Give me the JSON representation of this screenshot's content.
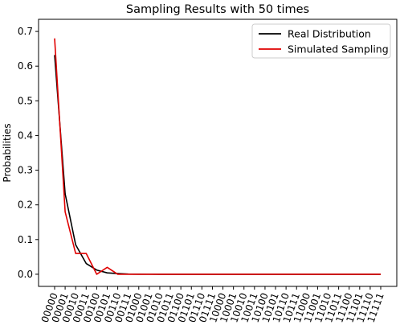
{
  "chart_data": {
    "type": "line",
    "title": "Sampling Results with 50 times",
    "xlabel": "",
    "ylabel": "Probabilities",
    "ylim": [
      -0.035,
      0.735
    ],
    "yticks": [
      0.0,
      0.1,
      0.2,
      0.3,
      0.4,
      0.5,
      0.6,
      0.7
    ],
    "ytick_labels": [
      "0.0",
      "0.1",
      "0.2",
      "0.3",
      "0.4",
      "0.5",
      "0.6",
      "0.7"
    ],
    "x": [
      "00000",
      "00001",
      "00010",
      "00011",
      "00100",
      "00101",
      "00110",
      "00111",
      "01000",
      "01001",
      "01010",
      "01011",
      "01100",
      "01101",
      "01110",
      "01111",
      "10000",
      "10001",
      "10010",
      "10011",
      "10100",
      "10101",
      "10110",
      "10111",
      "11000",
      "11001",
      "11010",
      "11011",
      "11100",
      "11101",
      "11110",
      "11111"
    ],
    "visible_x_tick_labels": [
      "00000",
      "00001",
      "00010",
      "00011",
      "00100",
      "00101",
      "00110",
      "00111",
      "01000",
      "01001",
      "01010",
      "01011",
      "01100",
      "01101",
      "01110",
      "01111",
      "10000",
      "10001",
      "10010",
      "10011",
      "10100",
      "10101",
      "10110",
      "10111",
      "11000",
      "11001",
      "11010",
      "11011",
      "11100",
      "11101",
      "11110",
      "11111"
    ],
    "legend_position": "top-right",
    "grid": false,
    "series": [
      {
        "name": "Real Distribution",
        "color": "#000000",
        "values": [
          0.632,
          0.232,
          0.085,
          0.031,
          0.012,
          0.004,
          0.002,
          0.0005,
          0.0002,
          0.0001,
          5e-05,
          2e-05,
          1e-05,
          0,
          0,
          0,
          0,
          0,
          0,
          0,
          0,
          0,
          0,
          0,
          0,
          0,
          0,
          0,
          0,
          0,
          0,
          0
        ]
      },
      {
        "name": "Simulated Sampling",
        "color": "#e00000",
        "values": [
          0.68,
          0.18,
          0.06,
          0.06,
          0.0,
          0.02,
          0.0,
          0.0,
          0.0,
          0.0,
          0.0,
          0.0,
          0.0,
          0.0,
          0.0,
          0.0,
          0.0,
          0.0,
          0.0,
          0.0,
          0.0,
          0.0,
          0.0,
          0.0,
          0.0,
          0.0,
          0.0,
          0.0,
          0.0,
          0.0,
          0.0,
          0.0
        ]
      }
    ]
  }
}
